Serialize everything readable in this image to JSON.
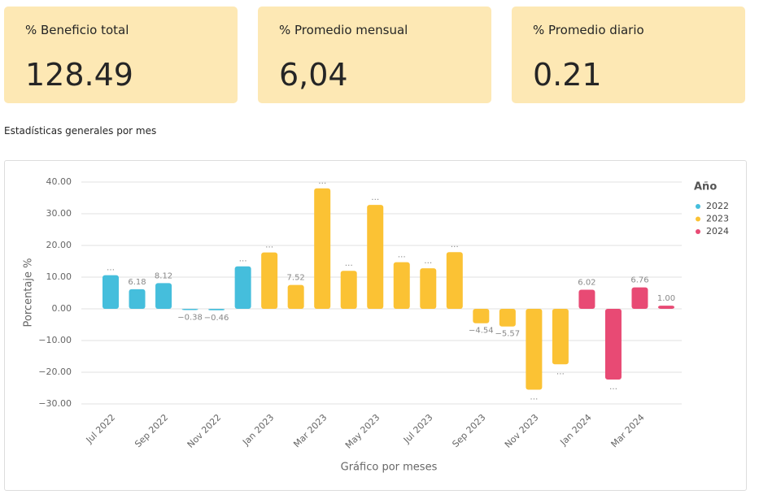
{
  "cards": [
    {
      "title": "% Beneficio total",
      "value": 128.49
    },
    {
      "title": "% Promedio mensual",
      "value": "6,04"
    },
    {
      "title": "% Promedio diario",
      "value": 0.21
    }
  ],
  "section_title": "Estadísticas generales por mes",
  "chart_data": {
    "type": "bar",
    "x_label": "Gráfico por meses",
    "y_label": "Porcentaje %",
    "legend_title": "Año",
    "legend_position": "right",
    "grid": true,
    "categories": [
      "Jul 2022",
      null,
      "Sep 2022",
      null,
      "Nov 2022",
      null,
      "Jan 2023",
      null,
      "Mar 2023",
      null,
      "May 2023",
      null,
      "Jul 2023",
      null,
      "Sep 2023",
      null,
      "Nov 2023",
      null,
      "Jan 2024",
      null,
      "Mar 2024",
      null
    ],
    "ylim": [
      -30,
      40
    ],
    "yticks": [
      {
        "value": 40,
        "label": "40.00"
      },
      {
        "value": 30,
        "label": "30.00"
      },
      {
        "value": 20,
        "label": "20.00"
      },
      {
        "value": 10,
        "label": "10.00"
      },
      {
        "value": 0,
        "label": "0.00"
      },
      {
        "value": -10,
        "label": "−10.00"
      },
      {
        "value": -20,
        "label": "−20.00"
      },
      {
        "value": -30,
        "label": "−30.00"
      }
    ],
    "series": [
      {
        "name": "2022",
        "color": "#45bedc",
        "values": [
          10.6,
          6.18,
          8.12,
          -0.38,
          -0.46,
          13.4,
          null,
          null,
          null,
          null,
          null,
          null,
          null,
          null,
          null,
          null,
          null,
          null,
          null,
          null,
          null,
          null
        ],
        "value_labels": [
          "…",
          "6.18",
          "8.12",
          "−0.38",
          "−0.46",
          "…",
          null,
          null,
          null,
          null,
          null,
          null,
          null,
          null,
          null,
          null,
          null,
          null,
          null,
          null,
          null,
          null
        ]
      },
      {
        "name": "2023",
        "color": "#fbc234",
        "values": [
          null,
          null,
          null,
          null,
          null,
          null,
          17.8,
          7.52,
          38.0,
          12.0,
          32.8,
          14.7,
          12.8,
          17.9,
          -4.54,
          -5.57,
          -25.5,
          -17.5,
          null,
          null,
          null,
          null
        ],
        "value_labels": [
          null,
          null,
          null,
          null,
          null,
          null,
          "…",
          "7.52",
          "…",
          "…",
          "…",
          "…",
          "…",
          "…",
          "−4.54",
          "−5.57",
          "…",
          "…",
          null,
          null,
          null,
          null
        ]
      },
      {
        "name": "2024",
        "color": "#e84a74",
        "values": [
          null,
          null,
          null,
          null,
          null,
          null,
          null,
          null,
          null,
          null,
          null,
          null,
          null,
          null,
          null,
          null,
          null,
          null,
          6.02,
          -22.3,
          6.76,
          1.0
        ],
        "value_labels": [
          null,
          null,
          null,
          null,
          null,
          null,
          null,
          null,
          null,
          null,
          null,
          null,
          null,
          null,
          null,
          null,
          null,
          null,
          "6.02",
          "…",
          "6.76",
          "1.00"
        ]
      }
    ]
  }
}
